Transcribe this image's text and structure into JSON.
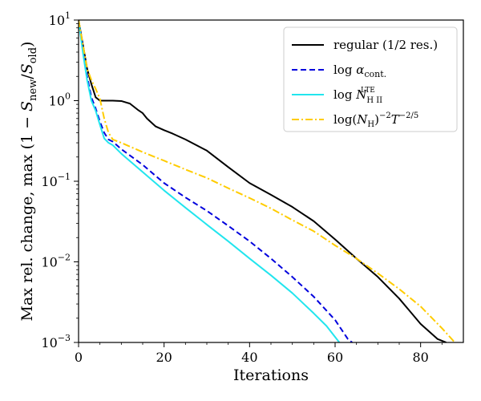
{
  "chart_data": {
    "type": "line",
    "title": "",
    "xlabel": "Iterations",
    "ylabel": "Max rel. change, max (1 − S_new/S_old)",
    "ylabel_parts": {
      "prefix": "Max rel. change, max (1 − ",
      "num_symbol": "S",
      "num_sub": "new",
      "slash": "/",
      "den_symbol": "S",
      "den_sub": "old",
      "suffix": ")"
    },
    "xlim": [
      0,
      90
    ],
    "ylim": [
      0.001,
      10
    ],
    "yscale": "log",
    "xticks": [
      0,
      20,
      40,
      60,
      80
    ],
    "yticks": [
      {
        "value": 0.001,
        "base": "10",
        "exp": "−3"
      },
      {
        "value": 0.01,
        "base": "10",
        "exp": "−2"
      },
      {
        "value": 0.1,
        "base": "10",
        "exp": "−1"
      },
      {
        "value": 1,
        "base": "10",
        "exp": "0"
      },
      {
        "value": 10,
        "base": "10",
        "exp": "1"
      }
    ],
    "grid": false,
    "legend_position": "top-right",
    "series": [
      {
        "name": "regular (1/2 res.)",
        "legend": {
          "text": "regular (1/2 res.)"
        },
        "color": "#000000",
        "style": "solid",
        "points": [
          [
            0,
            10
          ],
          [
            1,
            5
          ],
          [
            2,
            2.5
          ],
          [
            3,
            1.6
          ],
          [
            4,
            1.1
          ],
          [
            5,
            1.0
          ],
          [
            6,
            1.0
          ],
          [
            8,
            1.0
          ],
          [
            10,
            0.99
          ],
          [
            12,
            0.92
          ],
          [
            14,
            0.76
          ],
          [
            15,
            0.7
          ],
          [
            16,
            0.6
          ],
          [
            18,
            0.48
          ],
          [
            20,
            0.43
          ],
          [
            22,
            0.39
          ],
          [
            25,
            0.33
          ],
          [
            30,
            0.24
          ],
          [
            35,
            0.15
          ],
          [
            40,
            0.095
          ],
          [
            45,
            0.068
          ],
          [
            50,
            0.048
          ],
          [
            55,
            0.032
          ],
          [
            60,
            0.019
          ],
          [
            65,
            0.011
          ],
          [
            70,
            0.0065
          ],
          [
            75,
            0.0035
          ],
          [
            80,
            0.0017
          ],
          [
            84,
            0.0011
          ],
          [
            86,
            0.001
          ]
        ]
      },
      {
        "name": "log α_cont.",
        "legend": {
          "prefix": "log ",
          "symbol": "α",
          "sub": "cont."
        },
        "color": "#0000dd",
        "style": "dashed",
        "points": [
          [
            0,
            10
          ],
          [
            1,
            4.5
          ],
          [
            2,
            2.0
          ],
          [
            3,
            1.1
          ],
          [
            4,
            0.8
          ],
          [
            5,
            0.55
          ],
          [
            6,
            0.4
          ],
          [
            7,
            0.33
          ],
          [
            8,
            0.31
          ],
          [
            10,
            0.25
          ],
          [
            15,
            0.16
          ],
          [
            20,
            0.095
          ],
          [
            25,
            0.063
          ],
          [
            30,
            0.043
          ],
          [
            35,
            0.028
          ],
          [
            40,
            0.018
          ],
          [
            45,
            0.011
          ],
          [
            50,
            0.0065
          ],
          [
            55,
            0.0037
          ],
          [
            60,
            0.0019
          ],
          [
            63,
            0.0011
          ],
          [
            64,
            0.001
          ]
        ]
      },
      {
        "name": "log N_HII^LTE",
        "legend": {
          "prefix": "log ",
          "symbol": "N",
          "sub": "H II",
          "sup": "LTE"
        },
        "color": "#22e5ee",
        "style": "solid",
        "points": [
          [
            0,
            10
          ],
          [
            1,
            4.0
          ],
          [
            2,
            1.8
          ],
          [
            3,
            1.0
          ],
          [
            4,
            0.75
          ],
          [
            5,
            0.5
          ],
          [
            6,
            0.34
          ],
          [
            7,
            0.3
          ],
          [
            8,
            0.28
          ],
          [
            10,
            0.22
          ],
          [
            15,
            0.13
          ],
          [
            20,
            0.077
          ],
          [
            25,
            0.047
          ],
          [
            30,
            0.029
          ],
          [
            35,
            0.018
          ],
          [
            40,
            0.011
          ],
          [
            45,
            0.0068
          ],
          [
            50,
            0.0041
          ],
          [
            55,
            0.0023
          ],
          [
            58,
            0.0016
          ],
          [
            61,
            0.001
          ]
        ]
      },
      {
        "name": "log(N_H)^-2 T^-2/5",
        "legend": {
          "prefix": "log(",
          "symbol": "N",
          "sub": "H",
          "mid": ")",
          "sup1": "−2",
          "symbol2": "T",
          "sup2": "−2/5"
        },
        "color": "#ffcc00",
        "style": "dashdot",
        "points": [
          [
            0,
            10
          ],
          [
            1,
            5
          ],
          [
            2,
            2.5
          ],
          [
            3,
            1.8
          ],
          [
            4,
            1.4
          ],
          [
            5,
            1.05
          ],
          [
            6,
            0.6
          ],
          [
            7,
            0.4
          ],
          [
            8,
            0.33
          ],
          [
            10,
            0.3
          ],
          [
            15,
            0.23
          ],
          [
            20,
            0.18
          ],
          [
            25,
            0.14
          ],
          [
            30,
            0.11
          ],
          [
            35,
            0.082
          ],
          [
            40,
            0.062
          ],
          [
            45,
            0.046
          ],
          [
            50,
            0.033
          ],
          [
            55,
            0.024
          ],
          [
            60,
            0.016
          ],
          [
            65,
            0.011
          ],
          [
            70,
            0.0072
          ],
          [
            75,
            0.0046
          ],
          [
            80,
            0.0028
          ],
          [
            85,
            0.0015
          ],
          [
            88,
            0.001
          ]
        ]
      }
    ]
  }
}
